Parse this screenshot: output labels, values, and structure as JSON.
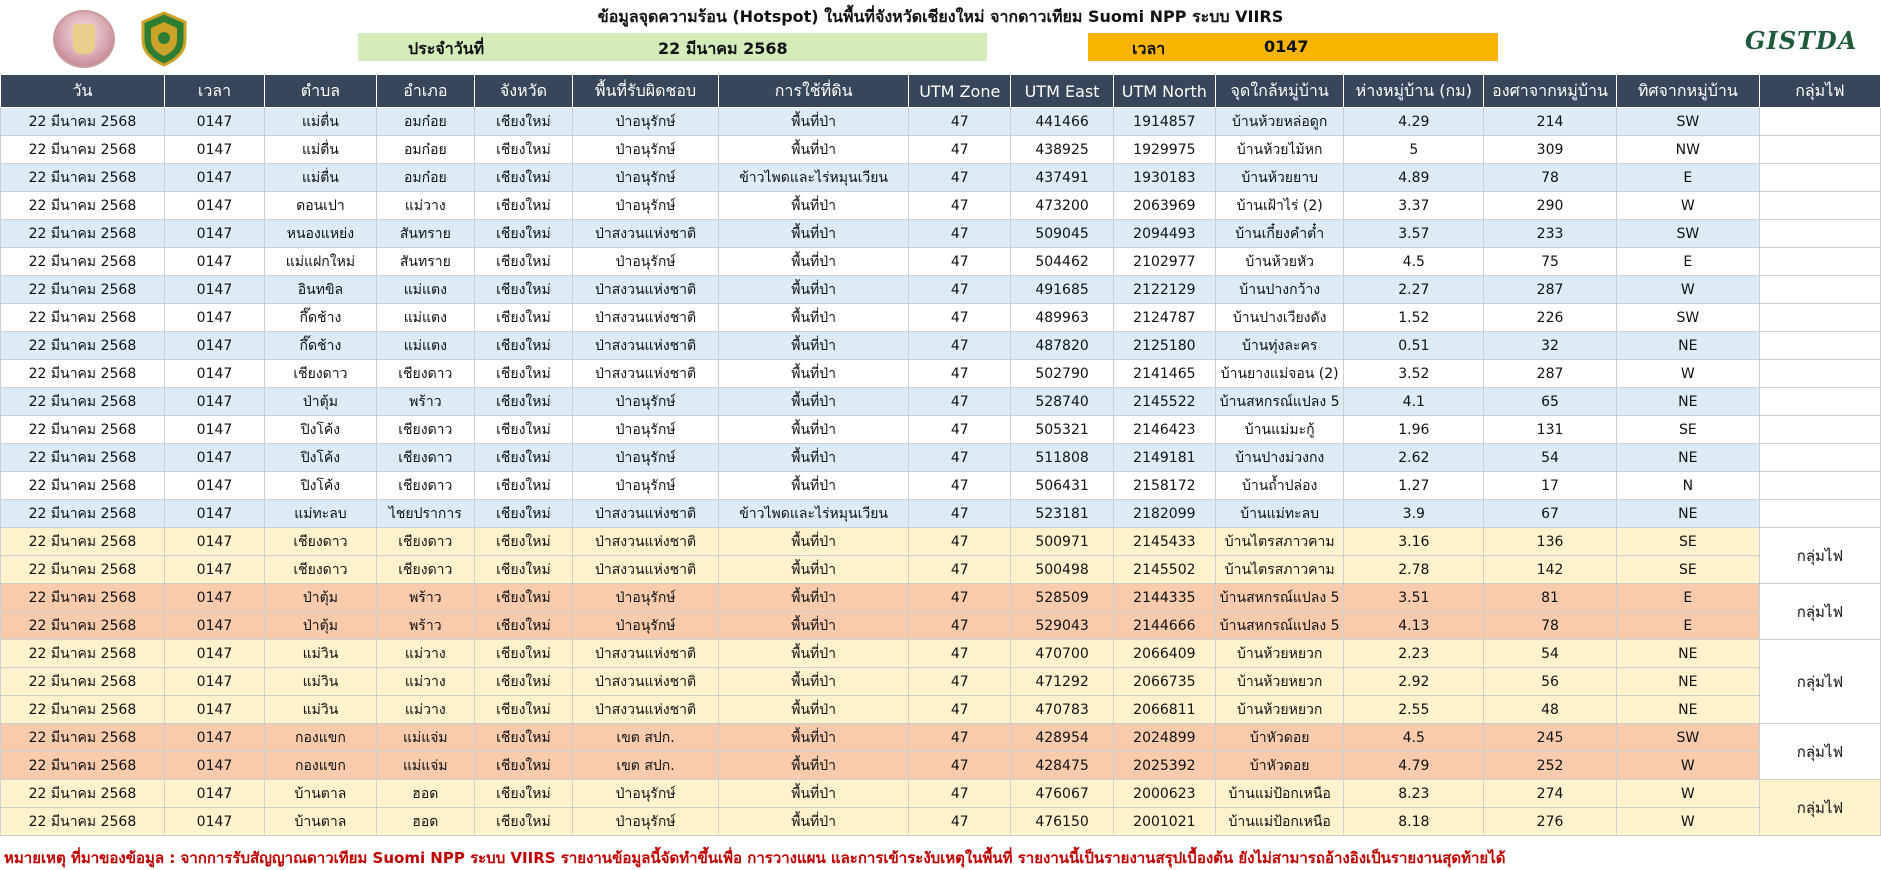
{
  "header": {
    "title": "ข้อมูลจุดความร้อน (Hotspot) ในพื้นที่จังหวัดเชียงใหม่ จากดาวเทียม Suomi NPP ระบบ VIIRS",
    "date_label": "ประจำวันที่",
    "date_value": "22 มีนาคม 2568",
    "time_label": "เวลา",
    "time_value": "0147",
    "brand_logo": "GISTDA",
    "logo_left_icon": "agency-emblem-icon",
    "logo_seal_icon": "provincial-seal-icon"
  },
  "columns": [
    "วัน",
    "เวลา",
    "ตำบล",
    "อำเภอ",
    "จังหวัด",
    "พื้นที่รับผิดชอบ",
    "การใช้ที่ดิน",
    "UTM Zone",
    "UTM East",
    "UTM North",
    "จุดใกล้หมู่บ้าน",
    "ห่างหมู่บ้าน (กม)",
    "องศาจากหมู่บ้าน",
    "ทิศจากหมู่บ้าน",
    "กลุ่มไฟ"
  ],
  "rows": [
    [
      "22 มีนาคม 2568",
      "0147",
      "แม่ตื่น",
      "อมก๋อย",
      "เชียงใหม่",
      "ป่าอนุรักษ์",
      "พื้นที่ป่า",
      "47",
      "441466",
      "1914857",
      "บ้านห้วยหล่อดูก",
      "4.29",
      "214",
      "SW"
    ],
    [
      "22 มีนาคม 2568",
      "0147",
      "แม่ตื่น",
      "อมก๋อย",
      "เชียงใหม่",
      "ป่าอนุรักษ์",
      "พื้นที่ป่า",
      "47",
      "438925",
      "1929975",
      "บ้านห้วยไม้หก",
      "5",
      "309",
      "NW"
    ],
    [
      "22 มีนาคม 2568",
      "0147",
      "แม่ตื่น",
      "อมก๋อย",
      "เชียงใหม่",
      "ป่าอนุรักษ์",
      "ข้าวไพดและไร่หมุนเวียน",
      "47",
      "437491",
      "1930183",
      "บ้านห้วยยาบ",
      "4.89",
      "78",
      "E"
    ],
    [
      "22 มีนาคม 2568",
      "0147",
      "ดอนเปา",
      "แม่วาง",
      "เชียงใหม่",
      "ป่าอนุรักษ์",
      "พื้นที่ป่า",
      "47",
      "473200",
      "2063969",
      "บ้านเฝ้าไร่ (2)",
      "3.37",
      "290",
      "W"
    ],
    [
      "22 มีนาคม 2568",
      "0147",
      "หนองแหย่ง",
      "สันทราย",
      "เชียงใหม่",
      "ป่าสงวนแห่งชาติ",
      "พื้นที่ป่า",
      "47",
      "509045",
      "2094493",
      "บ้านเกี๋ยงคำต๋ำ",
      "3.57",
      "233",
      "SW"
    ],
    [
      "22 มีนาคม 2568",
      "0147",
      "แม่แฝกใหม่",
      "สันทราย",
      "เชียงใหม่",
      "ป่าอนุรักษ์",
      "พื้นที่ป่า",
      "47",
      "504462",
      "2102977",
      "บ้านห้วยหัว",
      "4.5",
      "75",
      "E"
    ],
    [
      "22 มีนาคม 2568",
      "0147",
      "อินทขิล",
      "แม่แตง",
      "เชียงใหม่",
      "ป่าสงวนแห่งชาติ",
      "พื้นที่ป่า",
      "47",
      "491685",
      "2122129",
      "บ้านปางกว้าง",
      "2.27",
      "287",
      "W"
    ],
    [
      "22 มีนาคม 2568",
      "0147",
      "กึ๊ดช้าง",
      "แม่แตง",
      "เชียงใหม่",
      "ป่าสงวนแห่งชาติ",
      "พื้นที่ป่า",
      "47",
      "489963",
      "2124787",
      "บ้านปางเวียงดัง",
      "1.52",
      "226",
      "SW"
    ],
    [
      "22 มีนาคม 2568",
      "0147",
      "กึ๊ดช้าง",
      "แม่แตง",
      "เชียงใหม่",
      "ป่าสงวนแห่งชาติ",
      "พื้นที่ป่า",
      "47",
      "487820",
      "2125180",
      "บ้านทุ่งละคร",
      "0.51",
      "32",
      "NE"
    ],
    [
      "22 มีนาคม 2568",
      "0147",
      "เชียงดาว",
      "เชียงดาว",
      "เชียงใหม่",
      "ป่าสงวนแห่งชาติ",
      "พื้นที่ป่า",
      "47",
      "502790",
      "2141465",
      "บ้านยางแม่จอน (2)",
      "3.52",
      "287",
      "W"
    ],
    [
      "22 มีนาคม 2568",
      "0147",
      "ป่าตุ้ม",
      "พร้าว",
      "เชียงใหม่",
      "ป่าอนุรักษ์",
      "พื้นที่ป่า",
      "47",
      "528740",
      "2145522",
      "บ้านสหกรณ์แปลง 5",
      "4.1",
      "65",
      "NE"
    ],
    [
      "22 มีนาคม 2568",
      "0147",
      "ปิงโค้ง",
      "เชียงดาว",
      "เชียงใหม่",
      "ป่าอนุรักษ์",
      "พื้นที่ป่า",
      "47",
      "505321",
      "2146423",
      "บ้านแม่มะกู้",
      "1.96",
      "131",
      "SE"
    ],
    [
      "22 มีนาคม 2568",
      "0147",
      "ปิงโค้ง",
      "เชียงดาว",
      "เชียงใหม่",
      "ป่าอนุรักษ์",
      "พื้นที่ป่า",
      "47",
      "511808",
      "2149181",
      "บ้านปางม่วงกง",
      "2.62",
      "54",
      "NE"
    ],
    [
      "22 มีนาคม 2568",
      "0147",
      "ปิงโค้ง",
      "เชียงดาว",
      "เชียงใหม่",
      "ป่าอนุรักษ์",
      "พื้นที่ป่า",
      "47",
      "506431",
      "2158172",
      "บ้านถ้ำปล่อง",
      "1.27",
      "17",
      "N"
    ],
    [
      "22 มีนาคม 2568",
      "0147",
      "แม่ทะลบ",
      "ไชยปราการ",
      "เชียงใหม่",
      "ป่าสงวนแห่งชาติ",
      "ข้าวไพดและไร่หมุนเวียน",
      "47",
      "523181",
      "2182099",
      "บ้านแม่ทะลบ",
      "3.9",
      "67",
      "NE"
    ],
    [
      "22 มีนาคม 2568",
      "0147",
      "เชียงดาว",
      "เชียงดาว",
      "เชียงใหม่",
      "ป่าสงวนแห่งชาติ",
      "พื้นที่ป่า",
      "47",
      "500971",
      "2145433",
      "บ้านไตรสภาวคาม",
      "3.16",
      "136",
      "SE"
    ],
    [
      "22 มีนาคม 2568",
      "0147",
      "เชียงดาว",
      "เชียงดาว",
      "เชียงใหม่",
      "ป่าสงวนแห่งชาติ",
      "พื้นที่ป่า",
      "47",
      "500498",
      "2145502",
      "บ้านไตรสภาวคาม",
      "2.78",
      "142",
      "SE"
    ],
    [
      "22 มีนาคม 2568",
      "0147",
      "ป่าตุ้ม",
      "พร้าว",
      "เชียงใหม่",
      "ป่าอนุรักษ์",
      "พื้นที่ป่า",
      "47",
      "528509",
      "2144335",
      "บ้านสหกรณ์แปลง 5",
      "3.51",
      "81",
      "E"
    ],
    [
      "22 มีนาคม 2568",
      "0147",
      "ป่าตุ้ม",
      "พร้าว",
      "เชียงใหม่",
      "ป่าอนุรักษ์",
      "พื้นที่ป่า",
      "47",
      "529043",
      "2144666",
      "บ้านสหกรณ์แปลง 5",
      "4.13",
      "78",
      "E"
    ],
    [
      "22 มีนาคม 2568",
      "0147",
      "แม่วิน",
      "แม่วาง",
      "เชียงใหม่",
      "ป่าสงวนแห่งชาติ",
      "พื้นที่ป่า",
      "47",
      "470700",
      "2066409",
      "บ้านห้วยหยวก",
      "2.23",
      "54",
      "NE"
    ],
    [
      "22 มีนาคม 2568",
      "0147",
      "แม่วิน",
      "แม่วาง",
      "เชียงใหม่",
      "ป่าสงวนแห่งชาติ",
      "พื้นที่ป่า",
      "47",
      "471292",
      "2066735",
      "บ้านห้วยหยวก",
      "2.92",
      "56",
      "NE"
    ],
    [
      "22 มีนาคม 2568",
      "0147",
      "แม่วิน",
      "แม่วาง",
      "เชียงใหม่",
      "ป่าสงวนแห่งชาติ",
      "พื้นที่ป่า",
      "47",
      "470783",
      "2066811",
      "บ้านห้วยหยวก",
      "2.55",
      "48",
      "NE"
    ],
    [
      "22 มีนาคม 2568",
      "0147",
      "กองแขก",
      "แม่แจ่ม",
      "เชียงใหม่",
      "เขต สปก.",
      "พื้นที่ป่า",
      "47",
      "428954",
      "2024899",
      "บ้าหัวดอย",
      "4.5",
      "245",
      "SW"
    ],
    [
      "22 มีนาคม 2568",
      "0147",
      "กองแขก",
      "แม่แจ่ม",
      "เชียงใหม่",
      "เขต สปก.",
      "พื้นที่ป่า",
      "47",
      "428475",
      "2025392",
      "บ้าหัวดอย",
      "4.79",
      "252",
      "W"
    ],
    [
      "22 มีนาคม 2568",
      "0147",
      "บ้านตาล",
      "ฮอด",
      "เชียงใหม่",
      "ป่าอนุรักษ์",
      "พื้นที่ป่า",
      "47",
      "476067",
      "2000623",
      "บ้านแม่ป้อกเหนือ",
      "8.23",
      "274",
      "W"
    ],
    [
      "22 มีนาคม 2568",
      "0147",
      "บ้านตาล",
      "ฮอด",
      "เชียงใหม่",
      "ป่าอนุรักษ์",
      "พื้นที่ป่า",
      "47",
      "476150",
      "2001021",
      "บ้านแม่ป้อกเหนือ",
      "8.18",
      "276",
      "W"
    ]
  ],
  "row_styles": [
    "blue",
    "white",
    "blue",
    "white",
    "blue",
    "white",
    "blue",
    "white",
    "blue",
    "white",
    "blue",
    "white",
    "blue",
    "white",
    "blue",
    "lightorange",
    "lightorange",
    "orange",
    "orange",
    "lightorange",
    "lightorange",
    "lightorange",
    "orange",
    "orange",
    "lightorange",
    "lightorange"
  ],
  "group_label": "กลุ่มไฟ",
  "groups": [
    {
      "start": 15,
      "span": 2,
      "style": "white"
    },
    {
      "start": 17,
      "span": 2,
      "style": "white"
    },
    {
      "start": 19,
      "span": 3,
      "style": "white"
    },
    {
      "start": 22,
      "span": 2,
      "style": "white"
    },
    {
      "start": 24,
      "span": 2,
      "style": "fill"
    }
  ],
  "colors": {
    "header_bg": "#374659",
    "row_blue": "#ddebf7",
    "row_light_orange": "#fff2cc",
    "row_orange": "#f8cbad",
    "date_bar": "#d4ecb9",
    "time_bar": "#f7b400",
    "footer_text": "#c00000"
  },
  "footer": "หมายเหตุ ที่มาของข้อมูล : จากการรับสัญญาณดาวเทียม Suomi NPP ระบบ VIIRS   รายงานข้อมูลนี้จัดทำขึ้นเพื่อ การวางแผน และการเข้าระงับเหตุในพื้นที่ รายงานนี้เป็นรายงานสรุปเบื้องต้น ยังไม่สามารถอ้างอิงเป็นรายงานสุดท้ายได้"
}
